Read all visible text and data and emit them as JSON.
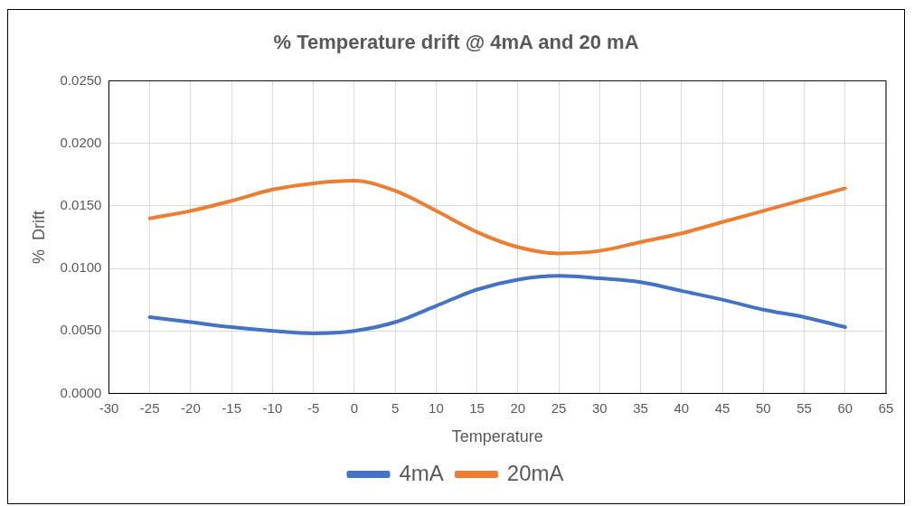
{
  "chart_data": {
    "type": "line",
    "title": "% Temperature drift @ 4mA and 20 mA",
    "xlabel": "Temperature",
    "ylabel": "%  Drift",
    "x": [
      -25,
      -20,
      -15,
      -10,
      -5,
      0,
      5,
      10,
      15,
      20,
      25,
      30,
      35,
      40,
      45,
      50,
      55,
      60
    ],
    "series": [
      {
        "name": "4mA",
        "color": "#4472c4",
        "values": [
          0.0061,
          0.0057,
          0.0053,
          0.005,
          0.0048,
          0.005,
          0.0057,
          0.007,
          0.0083,
          0.0091,
          0.0094,
          0.0092,
          0.0089,
          0.0082,
          0.0075,
          0.0067,
          0.0061,
          0.0053
        ]
      },
      {
        "name": "20mA",
        "color": "#ed7d31",
        "values": [
          0.014,
          0.0146,
          0.0154,
          0.0163,
          0.0168,
          0.017,
          0.0162,
          0.0146,
          0.0129,
          0.0117,
          0.0112,
          0.0114,
          0.0121,
          0.0128,
          0.0137,
          0.0146,
          0.0155,
          0.0164
        ]
      }
    ],
    "xlim": [
      -30,
      65
    ],
    "xticks": [
      -30,
      -25,
      -20,
      -15,
      -10,
      -5,
      0,
      5,
      10,
      15,
      20,
      25,
      30,
      35,
      40,
      45,
      50,
      55,
      60,
      65
    ],
    "ylim": [
      0,
      0.025
    ],
    "yticks": [
      {
        "value": 0,
        "label": "0.0000"
      },
      {
        "value": 0.005,
        "label": "0.0050"
      },
      {
        "value": 0.01,
        "label": "0.0100"
      },
      {
        "value": 0.015,
        "label": "0.0150"
      },
      {
        "value": 0.02,
        "label": "0.0200"
      },
      {
        "value": 0.025,
        "label": "0.0250"
      }
    ],
    "grid": true,
    "legend": "bottom",
    "marker": "none",
    "line_style": "solid"
  }
}
